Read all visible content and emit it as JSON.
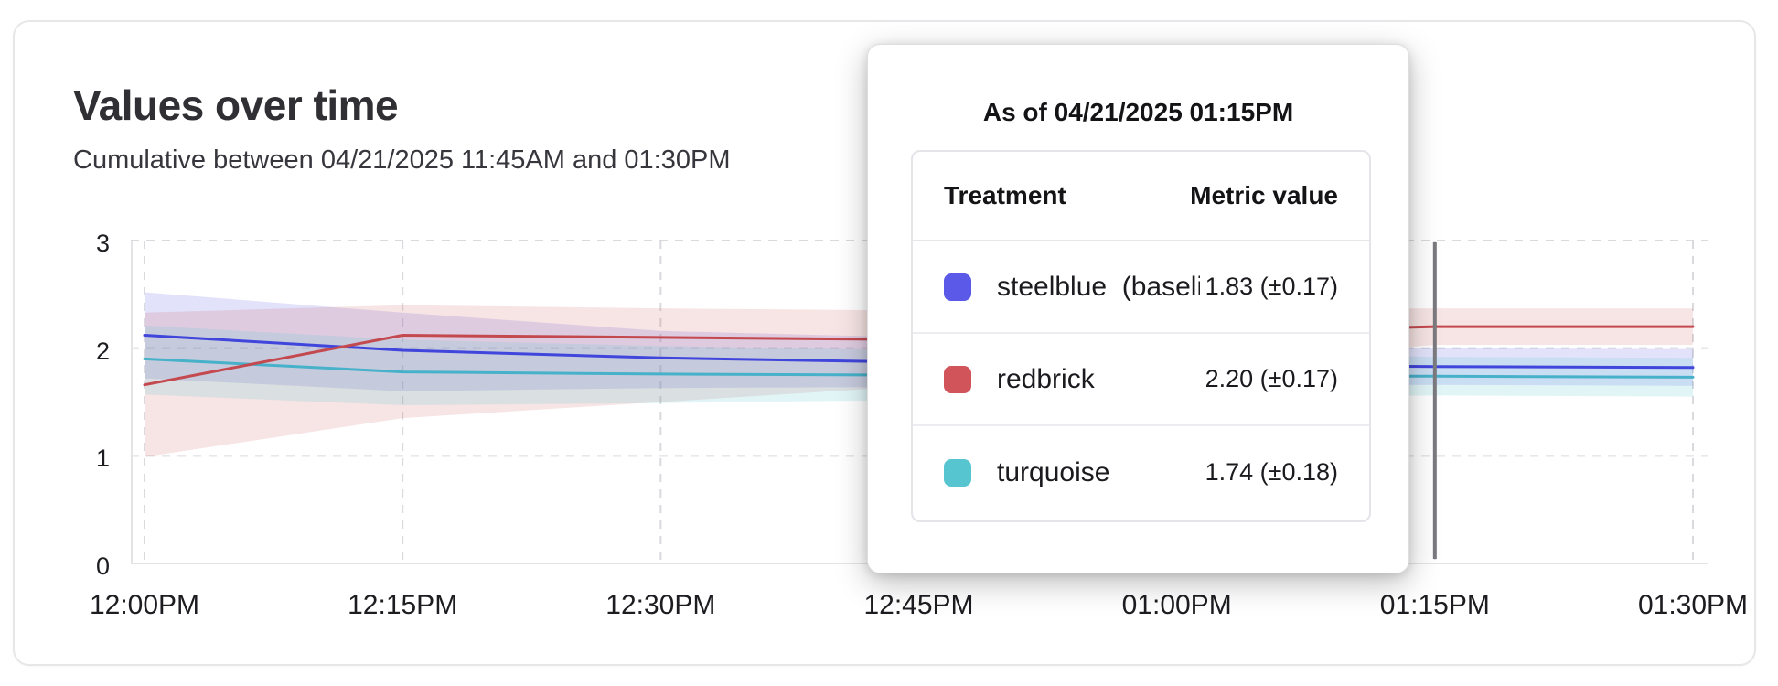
{
  "card": {
    "title": "Values over time",
    "subtitle": "Cumulative between 04/21/2025 11:45AM and 01:30PM"
  },
  "tooltip": {
    "header": "As of 04/21/2025 01:15PM",
    "columns": [
      "Treatment",
      "Metric value"
    ],
    "rows": [
      {
        "swatch_color": "#5a59e8",
        "label": "steelblue  (baseli",
        "value": "1.83 (±0.17)"
      },
      {
        "swatch_color": "#d05459",
        "label": "redbrick",
        "value": "2.20 (±0.17)"
      },
      {
        "swatch_color": "#56c5d0",
        "label": "turquoise",
        "value": "1.74 (±0.18)"
      }
    ]
  },
  "chart_data": {
    "type": "line",
    "title": "Values over time",
    "xlabel": "",
    "ylabel": "",
    "x_ticks": [
      "12:00PM",
      "12:15PM",
      "12:30PM",
      "12:45PM",
      "01:00PM",
      "01:15PM",
      "01:30PM"
    ],
    "y_ticks": [
      0,
      1,
      2,
      3
    ],
    "ylim": [
      0,
      3
    ],
    "grid": "dashed",
    "legend_position": "none",
    "hover_rule": {
      "x_tick": "01:15PM",
      "color": "#7a7a7f"
    },
    "series": [
      {
        "name": "steelblue",
        "color": "#4045dc",
        "band_color": "rgba(93,95,235,0.18)",
        "values": [
          2.12,
          1.98,
          1.91,
          1.87,
          1.85,
          1.83,
          1.82
        ],
        "lower": [
          1.72,
          1.6,
          1.63,
          1.64,
          1.65,
          1.66,
          1.65
        ],
        "upper": [
          2.52,
          2.33,
          2.16,
          2.1,
          2.05,
          2.0,
          1.99
        ]
      },
      {
        "name": "redbrick",
        "color": "#c4494f",
        "band_color": "rgba(208,84,89,0.16)",
        "values": [
          1.66,
          2.12,
          2.1,
          2.08,
          2.14,
          2.2,
          2.2
        ],
        "lower": [
          0.99,
          1.35,
          1.5,
          1.65,
          1.85,
          2.03,
          2.03
        ],
        "upper": [
          2.33,
          2.4,
          2.37,
          2.35,
          2.36,
          2.37,
          2.37
        ]
      },
      {
        "name": "turquoise",
        "color": "#47b1c9",
        "band_color": "rgba(86,197,208,0.18)",
        "values": [
          1.9,
          1.78,
          1.76,
          1.75,
          1.74,
          1.74,
          1.73
        ],
        "lower": [
          1.57,
          1.47,
          1.49,
          1.52,
          1.54,
          1.56,
          1.55
        ],
        "upper": [
          2.21,
          2.08,
          2.02,
          1.98,
          1.95,
          1.92,
          1.91
        ]
      }
    ]
  }
}
